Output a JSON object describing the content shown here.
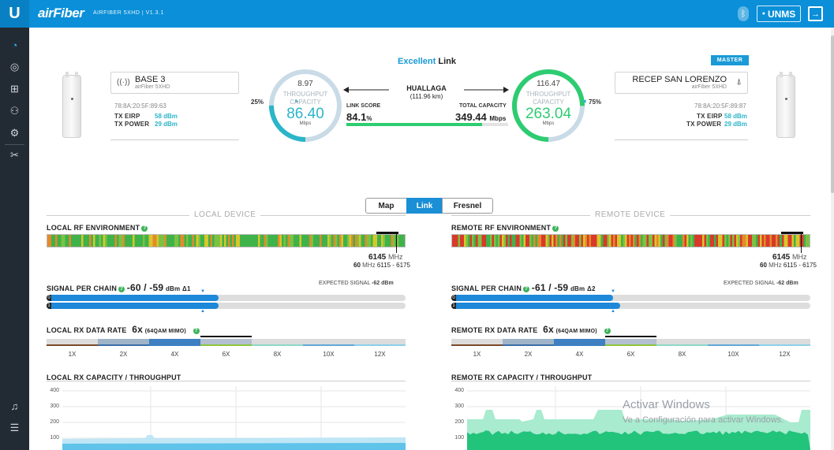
{
  "header": {
    "logo": "U",
    "brand": "airFiber",
    "subtitle": "AIRFIBER 5XHD | V1.3.1",
    "bluetooth_icon": "bluetooth-icon",
    "unms_label": "UNMS",
    "logout_icon": "logout-icon"
  },
  "sidebar": {
    "items": [
      "dashboard-icon",
      "wireless-icon",
      "network-icon",
      "services-icon",
      "system-icon",
      "tools-icon"
    ],
    "bottom": [
      "notifications-icon",
      "list-icon"
    ]
  },
  "link": {
    "quality": "Excellent",
    "quality_suffix": "Link",
    "name": "HUALLAGA",
    "distance": "(111.96 km)",
    "score_label": "LINK SCORE",
    "score": "84.1",
    "score_unit": "%",
    "score_fraction": 0.841,
    "capacity_label": "TOTAL CAPACITY",
    "capacity": "349.44",
    "capacity_unit": "Mbps",
    "quality_color": "#1a9ad6",
    "score_color": "#2ecc71"
  },
  "local": {
    "name": "BASE 3",
    "model": "airFiber 5XHD",
    "mac": "78:8A:20:5F:89:63",
    "tx_eirp_label": "TX EIRP",
    "tx_eirp": "58 dBm",
    "tx_power_label": "TX POWER",
    "tx_power": "29 dBm",
    "throughput_top": "8.97",
    "throughput_label1": "THROUGHPUT",
    "throughput_label2": "CAPACITY",
    "capacity": "86.40",
    "capacity_unit": "Mbps",
    "percent": "25%",
    "gauge_fraction": 0.25,
    "gauge_color": "#2bb5c8"
  },
  "remote": {
    "master_badge": "MASTER",
    "name": "RECEP SAN LORENZO",
    "model": "airFiber 5XHD",
    "mac": "78:8A:20:5F:89:87",
    "tx_eirp_label": "TX EIRP",
    "tx_eirp": "58 dBm",
    "tx_power_label": "TX POWER",
    "tx_power": "29 dBm",
    "throughput_top": "116.47",
    "throughput_label1": "THROUGHPUT",
    "throughput_label2": "CAPACITY",
    "capacity": "263.04",
    "capacity_unit": "Mbps",
    "percent": "75%",
    "gauge_fraction": 0.75,
    "gauge_color": "#2ecc71"
  },
  "view_tabs": {
    "map": "Map",
    "link": "Link",
    "fresnel": "Fresnel",
    "active": "Link"
  },
  "local_panel": {
    "heading": "LOCAL DEVICE",
    "rf_title": "LOCAL RF ENVIRONMENT",
    "freq": "6145",
    "freq_unit": "MHz",
    "bandwidth": "60",
    "bandwidth_unit": "MHz",
    "range": "6115 - 6175",
    "signal_title": "SIGNAL PER CHAIN",
    "signal": "-60 / -59",
    "signal_unit": "dBm",
    "delta": "Δ1",
    "expected_label": "EXPECTED SIGNAL",
    "expected": "-62 dBm",
    "chain0_fraction": 0.48,
    "chain1_fraction": 0.48,
    "rate_title": "LOCAL RX DATA RATE",
    "rate": "6x",
    "rate_mod": "(64QAM MIMO)",
    "rate_ticks": [
      "1X",
      "2X",
      "4X",
      "6X",
      "8X",
      "10X",
      "12X"
    ],
    "cap_title": "LOCAL RX CAPACITY / THROUGHPUT",
    "y_ticks": [
      "400",
      "300",
      "200",
      "100"
    ]
  },
  "remote_panel": {
    "heading": "REMOTE DEVICE",
    "rf_title": "REMOTE RF ENVIRONMENT",
    "freq": "6145",
    "freq_unit": "MHz",
    "bandwidth": "60",
    "bandwidth_unit": "MHz",
    "range": "6115 - 6175",
    "signal_title": "SIGNAL PER CHAIN",
    "signal": "-61 / -59",
    "signal_unit": "dBm",
    "delta": "Δ2",
    "expected_label": "EXPECTED SIGNAL",
    "expected": "-62 dBm",
    "chain0_fraction": 0.45,
    "chain1_fraction": 0.47,
    "rate_title": "REMOTE RX DATA RATE",
    "rate": "6x",
    "rate_mod": "(64QAM MIMO)",
    "rate_ticks": [
      "1X",
      "2X",
      "4X",
      "6X",
      "8X",
      "10X",
      "12X"
    ],
    "cap_title": "REMOTE RX CAPACITY / THROUGHPUT",
    "y_ticks": [
      "400",
      "300",
      "200",
      "100"
    ]
  },
  "watermark": {
    "line1": "Activar Windows",
    "line2": "Ve a Configuración para activar Windows."
  }
}
